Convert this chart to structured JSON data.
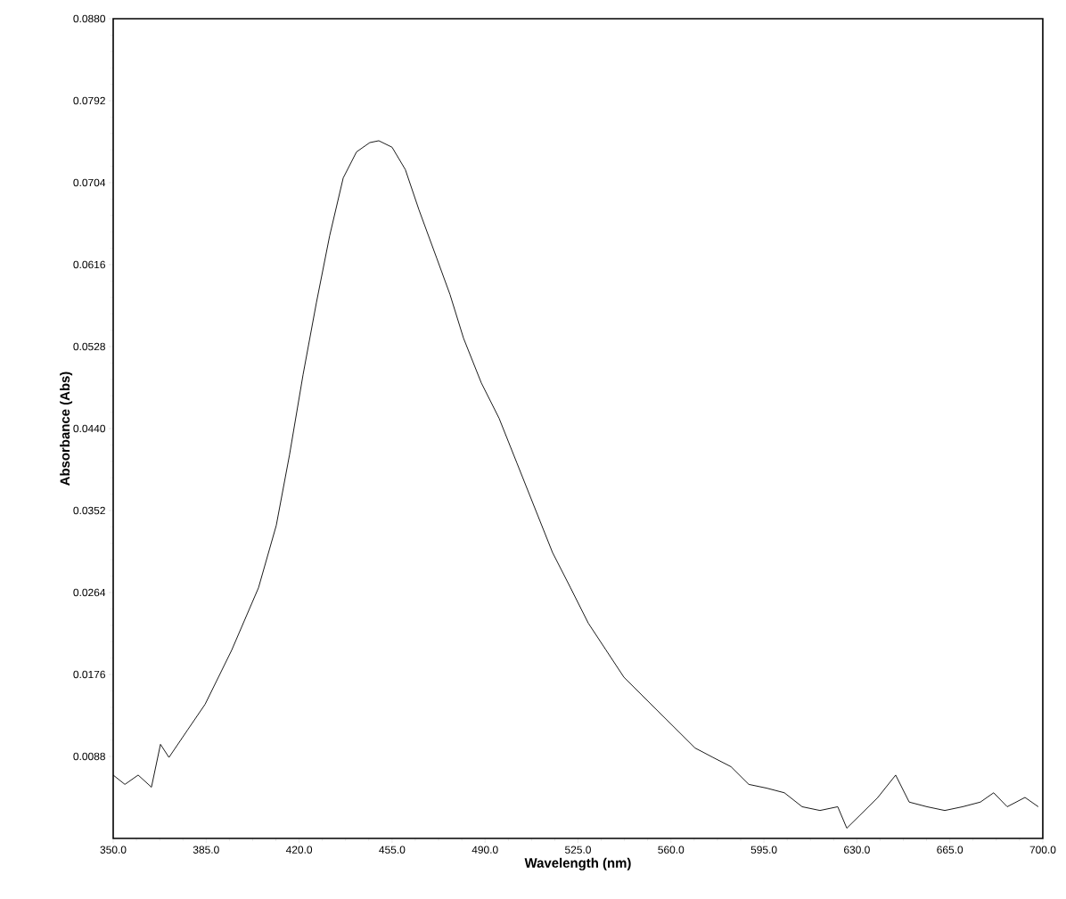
{
  "chart_data": {
    "type": "line",
    "xlabel": "Wavelength (nm)",
    "ylabel": "Absorbance (Abs)",
    "x": [
      350.0,
      354.4,
      359.4,
      364.4,
      367.8,
      371.0,
      377.9,
      384.6,
      394.6,
      404.7,
      411.4,
      416.4,
      421.5,
      426.5,
      431.5,
      436.6,
      441.6,
      446.6,
      450.0,
      455.0,
      460.0,
      465.1,
      471.8,
      476.8,
      481.9,
      488.6,
      495.3,
      502.0,
      508.7,
      515.4,
      522.2,
      528.9,
      535.6,
      542.3,
      549.0,
      555.7,
      562.4,
      569.1,
      575.8,
      582.6,
      589.3,
      596.0,
      602.7,
      609.4,
      616.1,
      622.8,
      626.2,
      631.2,
      637.9,
      644.6,
      649.7,
      656.4,
      663.1,
      669.8,
      676.5,
      681.5,
      686.6,
      693.3,
      698.3
    ],
    "series": [
      {
        "color": "#000000",
        "values": [
          0.0068,
          0.0058,
          0.0068,
          0.0055,
          0.0101,
          0.0087,
          0.0116,
          0.0144,
          0.0202,
          0.0269,
          0.0336,
          0.0412,
          0.0498,
          0.0575,
          0.0647,
          0.0709,
          0.0737,
          0.0747,
          0.0749,
          0.0742,
          0.0718,
          0.0675,
          0.0623,
          0.0584,
          0.0537,
          0.0489,
          0.0451,
          0.0403,
          0.0355,
          0.0307,
          0.0269,
          0.0231,
          0.0202,
          0.0173,
          0.0154,
          0.0135,
          0.0116,
          0.0097,
          0.0087,
          0.0077,
          0.0058,
          0.0054,
          0.0049,
          0.0034,
          0.003,
          0.0034,
          0.0011,
          0.0025,
          0.0044,
          0.0068,
          0.0039,
          0.0034,
          0.003,
          0.0034,
          0.0039,
          0.0049,
          0.0034,
          0.0044,
          0.0034
        ]
      }
    ],
    "xlim": [
      350,
      700
    ],
    "xticks": [
      {
        "value": 350,
        "label": "350.0"
      },
      {
        "value": 385,
        "label": "385.0"
      },
      {
        "value": 420,
        "label": "420.0"
      },
      {
        "value": 455,
        "label": "455.0"
      },
      {
        "value": 490,
        "label": "490.0"
      },
      {
        "value": 525,
        "label": "525.0"
      },
      {
        "value": 560,
        "label": "560.0"
      },
      {
        "value": 595,
        "label": "595.0"
      },
      {
        "value": 630,
        "label": "630.0"
      },
      {
        "value": 665,
        "label": "665.0"
      },
      {
        "value": 700,
        "label": "700.0"
      }
    ],
    "ylim": [
      0,
      0.088
    ],
    "yticks": [
      {
        "value": 0.0088,
        "label": "0.0088"
      },
      {
        "value": 0.0176,
        "label": "0.0176"
      },
      {
        "value": 0.0264,
        "label": "0.0264"
      },
      {
        "value": 0.0352,
        "label": "0.0352"
      },
      {
        "value": 0.044,
        "label": "0.0440"
      },
      {
        "value": 0.0528,
        "label": "0.0528"
      },
      {
        "value": 0.0616,
        "label": "0.0616"
      },
      {
        "value": 0.0704,
        "label": "0.0704"
      },
      {
        "value": 0.0792,
        "label": "0.0792"
      },
      {
        "value": 0.088,
        "label": "0.0880"
      }
    ],
    "marker": "none",
    "line_style": "solid"
  }
}
